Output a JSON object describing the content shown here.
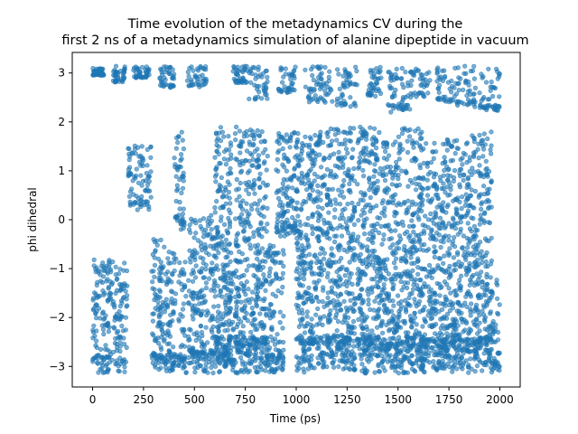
{
  "chart_data": {
    "type": "scatter",
    "title": "Time evolution of the metadynamics CV during the",
    "subtitle": "first 2 ns of a metadynamics simulation of alanine dipeptide in vacuum",
    "xlabel": "Time (ps)",
    "ylabel": "phi dihedral",
    "xlim": [
      -100,
      2100
    ],
    "ylim": [
      -3.42,
      3.42
    ],
    "xticks": [
      0,
      250,
      500,
      750,
      1000,
      1250,
      1500,
      1750,
      2000
    ],
    "yticks": [
      -3,
      -2,
      -1,
      0,
      1,
      2,
      3
    ],
    "grid": false,
    "legend": "none",
    "marker_color": "#1f77b4",
    "series": [
      {
        "description_of_segments": "Approximate occupancy of phi over time",
        "segments": [
          [
            0,
            170,
            -3.14,
            -0.8
          ],
          [
            0,
            60,
            2.95,
            3.1
          ],
          [
            100,
            160,
            2.8,
            3.14
          ],
          [
            175,
            290,
            0.2,
            1.55
          ],
          [
            200,
            280,
            2.9,
            3.14
          ],
          [
            290,
            340,
            -3.14,
            -0.4
          ],
          [
            330,
            400,
            2.7,
            3.14
          ],
          [
            330,
            410,
            -3.14,
            -0.5
          ],
          [
            400,
            450,
            -0.2,
            1.8
          ],
          [
            420,
            460,
            -3.14,
            -0.8
          ],
          [
            460,
            560,
            2.7,
            3.14
          ],
          [
            470,
            600,
            -3.14,
            0.1
          ],
          [
            600,
            680,
            -3.14,
            1.9
          ],
          [
            640,
            700,
            -3.14,
            -1.0
          ],
          [
            690,
            760,
            2.8,
            3.14
          ],
          [
            700,
            860,
            -3.14,
            1.9
          ],
          [
            760,
            860,
            2.4,
            3.14
          ],
          [
            860,
            940,
            -3.14,
            -0.5
          ],
          [
            900,
            1010,
            -0.4,
            1.8
          ],
          [
            910,
            1000,
            2.6,
            3.14
          ],
          [
            1000,
            1140,
            -3.14,
            1.8
          ],
          [
            1040,
            1180,
            2.4,
            3.14
          ],
          [
            1150,
            1290,
            -3.14,
            1.9
          ],
          [
            1200,
            1300,
            2.3,
            3.14
          ],
          [
            1300,
            1420,
            -3.14,
            1.9
          ],
          [
            1350,
            1420,
            2.5,
            3.14
          ],
          [
            1420,
            1520,
            -3.14,
            1.7
          ],
          [
            1450,
            1560,
            2.2,
            3.14
          ],
          [
            1520,
            1620,
            -3.14,
            1.9
          ],
          [
            1560,
            1660,
            2.5,
            3.14
          ],
          [
            1620,
            1740,
            -3.14,
            1.6
          ],
          [
            1690,
            1780,
            2.4,
            3.14
          ],
          [
            1740,
            1860,
            -3.14,
            1.7
          ],
          [
            1780,
            1880,
            2.3,
            3.14
          ],
          [
            1860,
            1960,
            -3.14,
            1.8
          ],
          [
            1900,
            2000,
            2.2,
            3.14
          ],
          [
            1960,
            2000,
            -3.14,
            -1.2
          ]
        ]
      }
    ]
  }
}
